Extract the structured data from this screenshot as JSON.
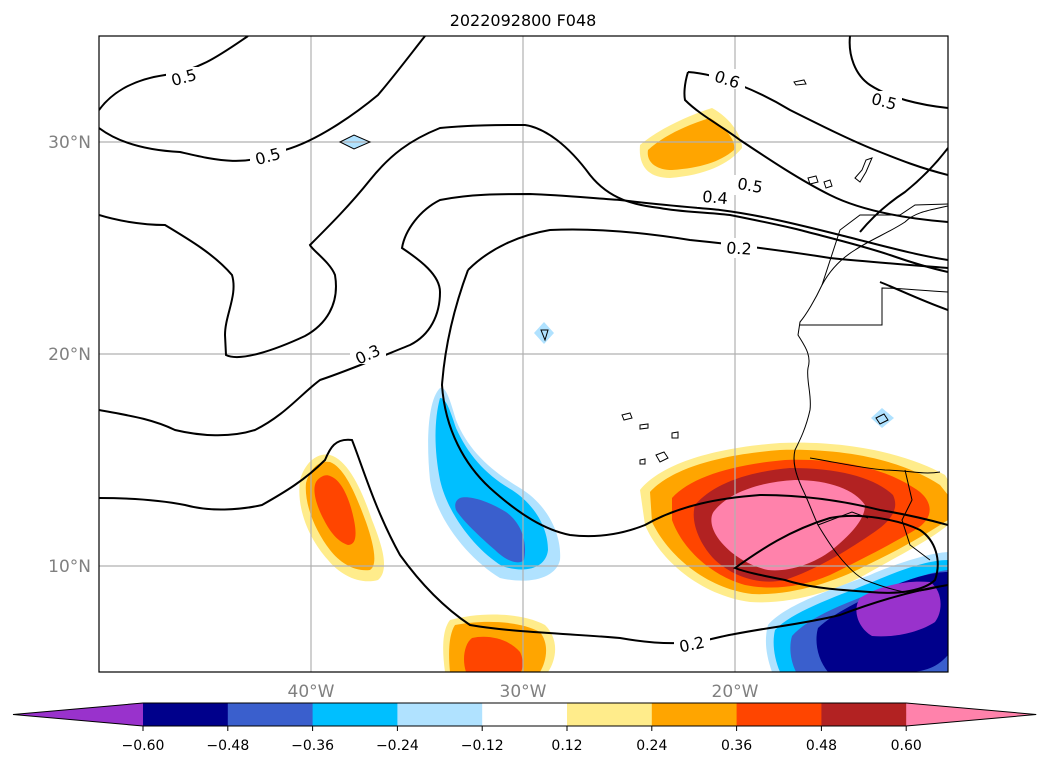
{
  "chart_data": {
    "type": "heatmap",
    "title": "2022092800 F048",
    "map": {
      "lon_range": [
        -50,
        -10
      ],
      "lat_range": [
        5,
        35
      ],
      "grid": true,
      "x_ticks": [
        {
          "value": -40,
          "label": "40°W"
        },
        {
          "value": -30,
          "label": "30°W"
        },
        {
          "value": -20,
          "label": "20°W"
        }
      ],
      "y_ticks": [
        {
          "value": 30,
          "label": "30°N"
        },
        {
          "value": 20,
          "label": "20°N"
        },
        {
          "value": 10,
          "label": "10°N"
        }
      ]
    },
    "colorbar": {
      "orientation": "horizontal",
      "extend": "both",
      "levels": [
        -0.72,
        -0.6,
        -0.48,
        -0.36,
        -0.24,
        -0.12,
        0.12,
        0.24,
        0.36,
        0.48,
        0.6,
        0.72
      ],
      "tick_labels": [
        "−0.60",
        "−0.48",
        "−0.36",
        "−0.24",
        "−0.12",
        "0.12",
        "0.24",
        "0.36",
        "0.48",
        "0.60"
      ],
      "colors": [
        "#9932cc",
        "#00008b",
        "#3a5fcd",
        "#00bfff",
        "#b0e2ff",
        "#ffffff",
        "#ffec8b",
        "#ffa500",
        "#ff4500",
        "#b22222",
        "#ff82ab"
      ]
    },
    "contour_labels": [
      "0.5",
      "0.5",
      "0.6",
      "0.5",
      "0.5",
      "0.4",
      "0.2",
      "0.3",
      "0.2"
    ]
  }
}
